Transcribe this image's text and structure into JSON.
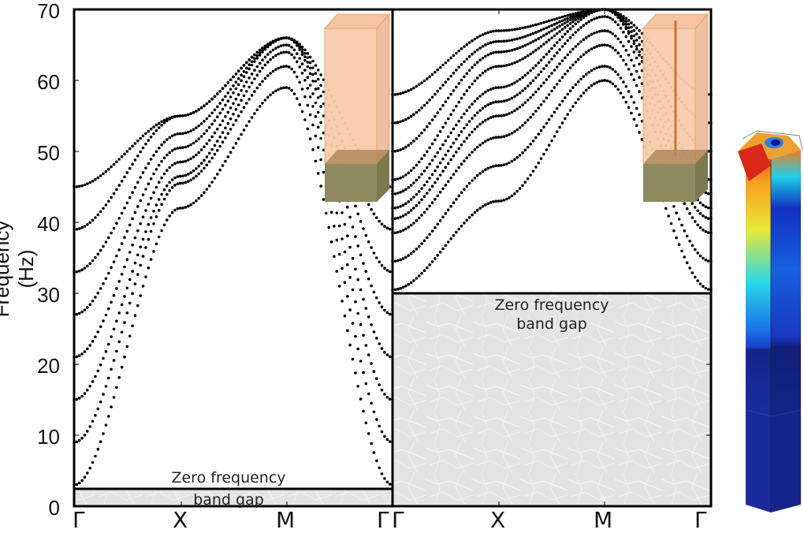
{
  "chart_data": [
    {
      "type": "scatter",
      "panel": "left",
      "title": "",
      "xlabel": "",
      "ylabel": "Frequency (Hz)",
      "ylim": [
        0,
        70
      ],
      "yticks": [
        0,
        10,
        20,
        30,
        40,
        50,
        60,
        70
      ],
      "xticks": [
        "Γ",
        "X",
        "M",
        "Γ"
      ],
      "annotation": "Zero frequency band gap",
      "band_gap": [
        0,
        2.5
      ],
      "inset": "Solid block on base (no resonator rod)",
      "bands_at_gamma": [
        3,
        9,
        15,
        21,
        27,
        33,
        39,
        45
      ],
      "bands_at_X": [
        42,
        45.5,
        46.5,
        48.5,
        50.5,
        52.5,
        55
      ],
      "peak_near_GX": 59,
      "bands_at_M": [
        59,
        62,
        64,
        65,
        66
      ]
    },
    {
      "type": "scatter",
      "panel": "right",
      "title": "",
      "xlabel": "",
      "ylabel": "Frequency (Hz)",
      "ylim": [
        0,
        70
      ],
      "xticks": [
        "Γ",
        "X",
        "M",
        "Γ"
      ],
      "annotation": "Zero frequency band gap",
      "band_gap": [
        0,
        30
      ],
      "inset": "Block on base with embedded rod resonator",
      "bands_at_gamma": [
        30.5,
        34.5,
        38.5,
        40.5,
        42,
        44,
        46,
        50,
        54,
        58
      ],
      "bands_at_X": [
        43,
        48,
        52,
        55,
        57,
        59,
        62,
        64,
        65.5,
        67
      ],
      "peak_near_GX": 67.5,
      "bands_at_M": [
        60,
        62,
        65,
        67,
        69,
        70
      ]
    }
  ],
  "axis": {
    "ylabel": "Frequency (Hz)",
    "yticks": [
      "0",
      "10",
      "20",
      "30",
      "40",
      "50",
      "60",
      "70"
    ],
    "xticks_left": [
      "Γ",
      "X",
      "M",
      "Γ"
    ],
    "xticks_right": [
      "Γ",
      "X",
      "M",
      "Γ"
    ]
  },
  "annotations": {
    "left_gap_line1": "Zero frequency",
    "left_gap_line2": "band gap",
    "right_gap_line1": "Zero frequency",
    "right_gap_line2": "band gap"
  },
  "colors": {
    "points": "#000000",
    "gap_fill": "#e6e6e6",
    "block_top": "#f9c9a6",
    "block_base": "#8f8a62",
    "rod": "#c8763a"
  }
}
